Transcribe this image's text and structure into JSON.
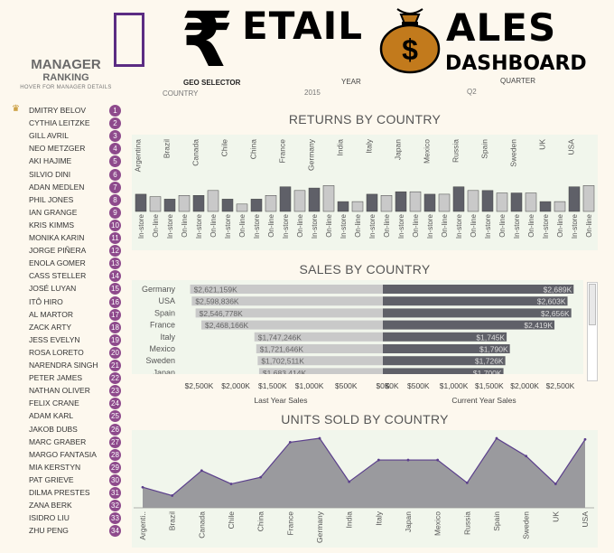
{
  "header": {
    "title_left": "ETAIL",
    "title_right": "ALES",
    "subtitle": "DASHBOARD",
    "rupee_glyph": "₹",
    "money_bag_glyph": "$"
  },
  "manager_panel": {
    "title": "MANAGER",
    "subtitle": "RANKING",
    "hint": "HOVER FOR MANAGER DETAILS"
  },
  "filters": {
    "geo_selector_label": "GEO SELECTOR",
    "country_label": "COUNTRY",
    "year_label": "YEAR",
    "year_value": "2015",
    "quarter_label": "QUARTER",
    "quarter_value": "Q2"
  },
  "managers": [
    {
      "name": "DMITRY BELOV",
      "rank": "1"
    },
    {
      "name": "CYTHIA LEITZKE",
      "rank": "2"
    },
    {
      "name": "GILL AVRIL",
      "rank": "3"
    },
    {
      "name": "NEO METZGER",
      "rank": "4"
    },
    {
      "name": "AKI HAJIME",
      "rank": "5"
    },
    {
      "name": "SILVIO DINI",
      "rank": "6"
    },
    {
      "name": "ADAN MEDLEN",
      "rank": "7"
    },
    {
      "name": "PHIL JONES",
      "rank": "8"
    },
    {
      "name": "IAN GRANGE",
      "rank": "9"
    },
    {
      "name": "KRIS KIMMS",
      "rank": "10"
    },
    {
      "name": "MONIKA KARIN",
      "rank": "11"
    },
    {
      "name": "JORGE PIÑERA",
      "rank": "12"
    },
    {
      "name": "ENOLA GOMER",
      "rank": "13"
    },
    {
      "name": "CASS STELLER",
      "rank": "14"
    },
    {
      "name": "JOSÉ LUYAN",
      "rank": "15"
    },
    {
      "name": "ITÔ HIRO",
      "rank": "16"
    },
    {
      "name": "AL MARTOR",
      "rank": "17"
    },
    {
      "name": "ZACK ARTY",
      "rank": "18"
    },
    {
      "name": "JESS EVELYN",
      "rank": "19"
    },
    {
      "name": "ROSA LORETO",
      "rank": "20"
    },
    {
      "name": "NARENDRA SINGH",
      "rank": "21"
    },
    {
      "name": "PETER JAMES",
      "rank": "22"
    },
    {
      "name": "NATHAN OLIVER",
      "rank": "23"
    },
    {
      "name": "FELIX CRANE",
      "rank": "24"
    },
    {
      "name": "ADAM KARL",
      "rank": "25"
    },
    {
      "name": "JAKOB DUBS",
      "rank": "26"
    },
    {
      "name": "MARC GRABER",
      "rank": "27"
    },
    {
      "name": "MARGO FANTASIA",
      "rank": "28"
    },
    {
      "name": "MIA KERSTYN",
      "rank": "29"
    },
    {
      "name": "PAT GRIEVE",
      "rank": "30"
    },
    {
      "name": "DILMA PRESTES",
      "rank": "31"
    },
    {
      "name": "ZANA BERK",
      "rank": "32"
    },
    {
      "name": "ISIDRO LIU",
      "rank": "33"
    },
    {
      "name": "ZHU PENG",
      "rank": "34"
    }
  ],
  "colors": {
    "background": "#fdf8ee",
    "panel": "#f1f6ec",
    "bar_dark": "#5f6068",
    "bar_light": "#c9c9c9",
    "rank_badge": "#8e4a8c",
    "area_fill": "#9a9a9e",
    "area_line": "#5b3f8c",
    "logo_border": "#5b2c83"
  },
  "chart_data": [
    {
      "type": "bar",
      "title": "RETURNS BY COUNTRY",
      "categories": [
        "Argentina",
        "Brazil",
        "Canada",
        "Chile",
        "China",
        "France",
        "Germany",
        "India",
        "Italy",
        "Japan",
        "Mexico",
        "Russia",
        "Spain",
        "Sweden",
        "UK",
        "USA"
      ],
      "subcategories": [
        "In-store",
        "On-line"
      ],
      "series": [
        {
          "name": "In-store",
          "values": [
            14,
            10,
            13,
            10,
            10,
            20,
            19,
            8,
            14,
            16,
            14,
            20,
            17,
            15,
            8,
            20
          ]
        },
        {
          "name": "On-line",
          "values": [
            12,
            13,
            17,
            6,
            13,
            17,
            21,
            8,
            13,
            16,
            14,
            17,
            15,
            15,
            8,
            21
          ]
        }
      ]
    },
    {
      "type": "bar",
      "title": "SALES BY COUNTRY",
      "orientation": "horizontal",
      "categories": [
        "Germany",
        "USA",
        "Spain",
        "France",
        "Italy",
        "Mexico",
        "Sweden",
        "Japan"
      ],
      "series": [
        {
          "name": "Last Year Sales",
          "values": [
            2621159,
            2598836,
            2546778,
            2468166,
            1747246,
            1721646,
            1702511,
            1683414
          ],
          "labels": [
            "$2,621,159K",
            "$2,598,836K",
            "$2,546,778K",
            "$2,468,166K",
            "$1,747,246K",
            "$1,721,646K",
            "$1,702,511K",
            "$1,683,414K"
          ]
        },
        {
          "name": "Current Year Sales",
          "values": [
            2689,
            2603,
            2656,
            2419,
            1745,
            1790,
            1726,
            1700
          ],
          "labels": [
            "$2,689K",
            "$2,603K",
            "$2,656K",
            "$2,419K",
            "$1,745K",
            "$1,790K",
            "$1,726K",
            "$1,700K"
          ]
        }
      ],
      "left_axis_ticks": [
        "$2,500K",
        "$2,000K",
        "$1,500K",
        "$1,000K",
        "$500K",
        "$0K"
      ],
      "right_axis_ticks": [
        "$0K",
        "$500K",
        "$1,000K",
        "$1,500K",
        "$2,000K",
        "$2,500K"
      ],
      "left_xlabel": "Last Year Sales",
      "right_xlabel": "Current Year Sales",
      "xlim": [
        0,
        2800
      ]
    },
    {
      "type": "area",
      "title": "UNITS SOLD BY COUNTRY",
      "categories": [
        "Argentina",
        "Brazil",
        "Canada",
        "Chile",
        "China",
        "France",
        "Germany",
        "India",
        "Italy",
        "Japan",
        "Mexico",
        "Russia",
        "Spain",
        "Sweden",
        "UK",
        "USA"
      ],
      "tick_labels": [
        "Argenti..",
        "Brazil",
        "Canada",
        "Chile",
        "China",
        "France",
        "Germany",
        "India",
        "Italy",
        "Japan",
        "Mexico",
        "Russia",
        "Spain",
        "Sweden",
        "UK",
        "USA"
      ],
      "values": [
        37,
        22,
        67,
        43,
        55,
        118,
        125,
        47,
        86,
        86,
        86,
        45,
        125,
        93,
        43,
        123
      ],
      "ylim": [
        0,
        130
      ]
    }
  ]
}
